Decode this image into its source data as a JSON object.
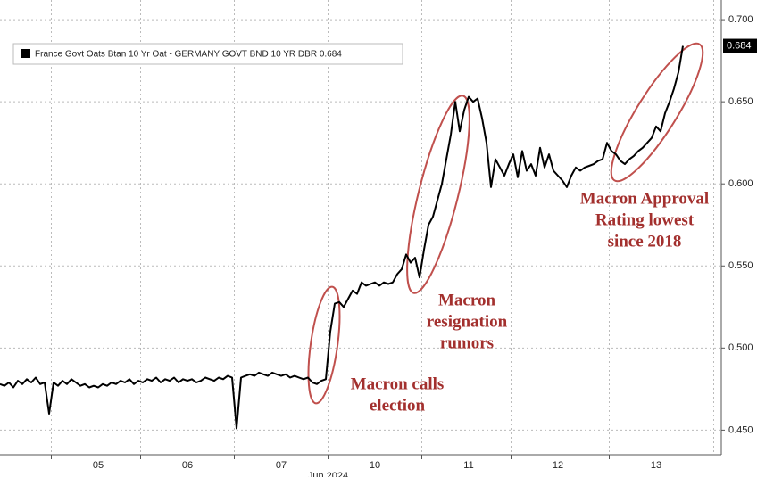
{
  "chart_data": {
    "type": "line",
    "legend_label": "France Govt Oats Btan 10 Yr Oat - GERMANY GOVT BND 10 YR DBR 0.684",
    "x_sublabel": "Jun 2024",
    "categories": [
      null,
      null,
      null,
      null,
      null,
      null,
      null,
      null,
      null,
      null,
      null,
      null,
      null,
      null,
      null,
      null,
      null,
      null,
      null,
      null,
      null,
      null,
      "05",
      null,
      null,
      null,
      null,
      null,
      null,
      null,
      null,
      null,
      null,
      null,
      null,
      null,
      null,
      null,
      null,
      null,
      null,
      null,
      "06",
      null,
      null,
      null,
      null,
      null,
      null,
      null,
      null,
      null,
      null,
      null,
      null,
      null,
      null,
      null,
      null,
      null,
      null,
      null,
      null,
      "07",
      null,
      null,
      null,
      null,
      null,
      null,
      null,
      null,
      null,
      null,
      null,
      null,
      null,
      null,
      null,
      null,
      null,
      null,
      null,
      null,
      "10",
      null,
      null,
      null,
      null,
      null,
      null,
      null,
      null,
      null,
      null,
      null,
      null,
      null,
      null,
      null,
      null,
      null,
      null,
      null,
      null,
      "11",
      null,
      null,
      null,
      null,
      null,
      null,
      null,
      null,
      null,
      null,
      null,
      null,
      null,
      null,
      null,
      null,
      null,
      null,
      null,
      "12",
      null,
      null,
      null,
      null,
      null,
      null,
      null,
      null,
      null,
      null,
      null,
      null,
      null,
      null,
      null,
      null,
      null,
      null,
      null,
      null,
      null,
      "13",
      null,
      null,
      null,
      null,
      null,
      null
    ],
    "series": [
      {
        "name": "France Govt Oats Btan 10 Yr Oat - GERMANY GOVT BND 10 YR DBR",
        "color": "#000000",
        "values": [
          0.478,
          0.477,
          0.479,
          0.476,
          0.48,
          0.478,
          0.481,
          0.479,
          0.482,
          0.478,
          0.479,
          0.46,
          0.479,
          0.477,
          0.48,
          0.478,
          0.481,
          0.479,
          0.477,
          0.478,
          0.476,
          0.477,
          0.476,
          0.478,
          0.477,
          0.479,
          0.478,
          0.48,
          0.479,
          0.481,
          0.478,
          0.48,
          0.479,
          0.481,
          0.48,
          0.482,
          0.479,
          0.481,
          0.48,
          0.482,
          0.479,
          0.481,
          0.48,
          0.481,
          0.479,
          0.48,
          0.482,
          0.481,
          0.48,
          0.482,
          0.481,
          0.483,
          0.482,
          0.451,
          0.482,
          0.483,
          0.484,
          0.483,
          0.485,
          0.484,
          0.483,
          0.485,
          0.484,
          0.483,
          0.484,
          0.482,
          0.483,
          0.482,
          0.481,
          0.482,
          0.479,
          0.478,
          0.48,
          0.481,
          0.51,
          0.527,
          0.528,
          0.525,
          0.53,
          0.535,
          0.533,
          0.54,
          0.538,
          0.539,
          0.54,
          0.538,
          0.54,
          0.539,
          0.54,
          0.545,
          0.548,
          0.557,
          0.552,
          0.555,
          0.543,
          0.56,
          0.575,
          0.58,
          0.59,
          0.6,
          0.615,
          0.63,
          0.65,
          0.632,
          0.645,
          0.653,
          0.65,
          0.652,
          0.64,
          0.625,
          0.598,
          0.615,
          0.61,
          0.605,
          0.612,
          0.618,
          0.604,
          0.62,
          0.608,
          0.612,
          0.605,
          0.622,
          0.61,
          0.618,
          0.608,
          0.605,
          0.602,
          0.598,
          0.605,
          0.61,
          0.608,
          0.61,
          0.611,
          0.612,
          0.614,
          0.615,
          0.625,
          0.62,
          0.618,
          0.614,
          0.612,
          0.615,
          0.617,
          0.62,
          0.622,
          0.625,
          0.628,
          0.635,
          0.632,
          0.643,
          0.65,
          0.658,
          0.668,
          0.684
        ]
      }
    ],
    "ylim": [
      0.435,
      0.712
    ],
    "yticks": [
      {
        "value": 0.45,
        "label": "0.450"
      },
      {
        "value": 0.5,
        "label": "0.500"
      },
      {
        "value": 0.55,
        "label": "0.550"
      },
      {
        "value": 0.6,
        "label": "0.600"
      },
      {
        "value": 0.65,
        "label": "0.650"
      },
      {
        "value": 0.7,
        "label": "0.700"
      }
    ],
    "grid": true,
    "annotations": [
      {
        "lines": [
          "Macron calls",
          "election"
        ]
      },
      {
        "lines": [
          "Macron",
          "resignation",
          "rumors"
        ]
      },
      {
        "lines": [
          "Macron Approval",
          "Rating lowest",
          "since 2018"
        ]
      }
    ]
  }
}
